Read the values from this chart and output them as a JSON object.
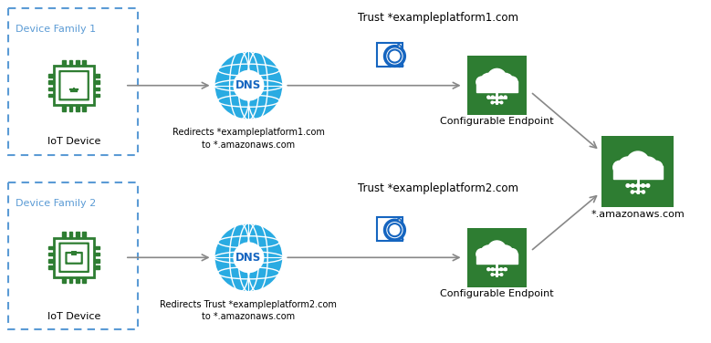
{
  "background_color": "#ffffff",
  "green_color": "#2e7d32",
  "dns_blue": "#29abe2",
  "dns_dark_blue": "#1565c0",
  "arrow_color": "#888888",
  "box_border_color": "#5b9bd5",
  "trust_label1": "Trust *exampleplatform1.com",
  "trust_label2": "Trust *exampleplatform2.com",
  "dns_label1a": "Redirects *exampleplatform1.com",
  "dns_label1b": "to *.amazonaws.com",
  "dns_label2a": "Redirects Trust *exampleplatform2.com",
  "dns_label2b": "to *.amazonaws.com",
  "ep_label": "Configurable Endpoint",
  "aws_label": "*.amazonaws.com",
  "iot_label": "IoT Device",
  "df1_label": "Device Family 1",
  "df2_label": "Device Family 2"
}
